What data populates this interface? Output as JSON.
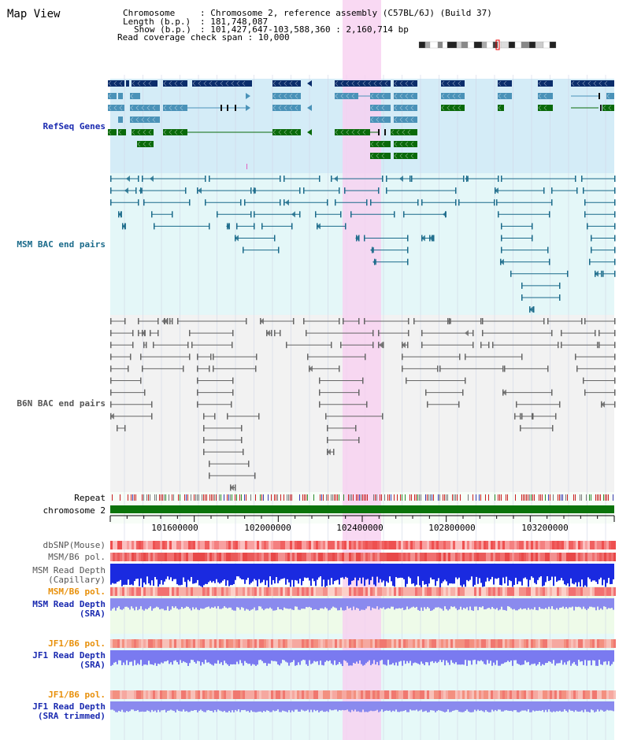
{
  "app_title": "Map View",
  "header": {
    "chromosome_label": "Chromosome",
    "chromosome_value": "Chromosome 2, reference assembly (C57BL/6J) (Build 37)",
    "length_label": "Length (b.p.)",
    "length_value": "181,748,087",
    "show_label": "Show (b.p.)",
    "show_value": "101,427,647-103,588,360 : 2,160,714 bp",
    "coverage_label": "Read coverage check span",
    "coverage_value": "10,000"
  },
  "tracks": {
    "refseq": "RefSeq Genes",
    "msm_bac": "MSM BAC end pairs",
    "b6n_bac": "B6N BAC end pairs",
    "repeat": "Repeat",
    "chromosome": "chromosome 2",
    "dbsnp": "dbSNP(Mouse)",
    "msm_b6_pol_1": "MSM/B6 pol.",
    "msm_depth_cap_1": "MSM Read Depth",
    "msm_depth_cap_2": "(Capillary)",
    "msm_b6_pol_2": "MSM/B6 pol.",
    "msm_depth_sra_1": "MSM Read Depth",
    "msm_depth_sra_2": "(SRA)",
    "jf1_b6_pol_1": "JF1/B6 pol.",
    "jf1_depth_sra_1": "JF1 Read Depth",
    "jf1_depth_sra_2": "(SRA)",
    "jf1_b6_pol_2": "JF1/B6 pol.",
    "jf1_depth_trim_1": "JF1 Read Depth",
    "jf1_depth_trim_2": "(SRA trimmed)"
  },
  "axis_ticks": [
    "101600000",
    "102000000",
    "102400000",
    "102800000",
    "103200000"
  ],
  "colors": {
    "refseq_dark": "#0b2d6b",
    "refseq_mid": "#4a92b8",
    "refseq_green": "#0a6a0a",
    "msm_line": "#1a6a8a",
    "b6n_line": "#666666",
    "highlight": "#f8d0f0",
    "refseq_bg": "#d4ecf7",
    "msm_bg": "#e4f7f8",
    "b6n_bg": "#f2f2f2"
  }
}
